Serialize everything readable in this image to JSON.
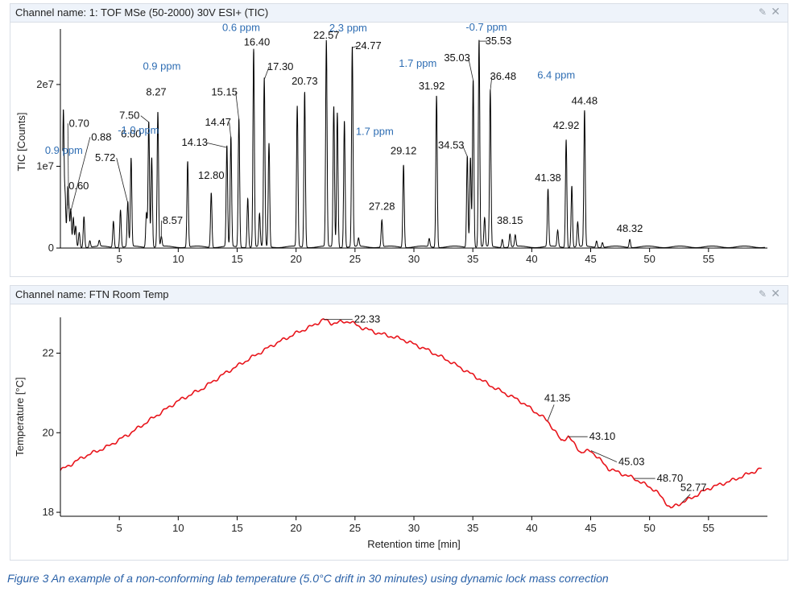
{
  "panels": {
    "top_title": "Channel name: 1: TOF MSe (50-2000) 30V ESI+ (TIC)",
    "bottom_title": "Channel name: FTN Room Temp",
    "pin_icon": "pin-icon",
    "close_icon": "close-icon",
    "pin_glyph": "✎",
    "close_glyph": "✕"
  },
  "caption": "Figure 3 An example of a non-conforming lab temperature (5.0°C drift in 30 minutes) using dynamic lock mass correction",
  "colors": {
    "tic_line": "#000000",
    "temp_line": "#e8141b",
    "ppm_text": "#2e6db3",
    "axis": "#000000"
  },
  "chart_data": [
    {
      "type": "line",
      "ylabel": "TIC [Counts]",
      "xlabel": "",
      "xlim": [
        0,
        60
      ],
      "ylim": [
        0,
        26000000
      ],
      "x_ticks": [
        5,
        10,
        15,
        20,
        25,
        30,
        35,
        40,
        45,
        50,
        55
      ],
      "y_ticks": [
        {
          "v": 0,
          "label": "0"
        },
        {
          "v": 10000000,
          "label": "1e7"
        },
        {
          "v": 20000000,
          "label": "2e7"
        }
      ],
      "grid": false,
      "peaks": [
        {
          "x": 0.25,
          "y": 16500000
        },
        {
          "x": 0.4,
          "y": 6000000
        },
        {
          "x": 0.6,
          "y": 5200000
        },
        {
          "x": 0.7,
          "y": 4800000
        },
        {
          "x": 0.88,
          "y": 4500000
        },
        {
          "x": 1.1,
          "y": 3500000
        },
        {
          "x": 1.3,
          "y": 2500000
        },
        {
          "x": 1.6,
          "y": 1800000
        },
        {
          "x": 2.0,
          "y": 3800000
        },
        {
          "x": 2.5,
          "y": 800000
        },
        {
          "x": 3.3,
          "y": 700000
        },
        {
          "x": 4.5,
          "y": 3200000
        },
        {
          "x": 5.1,
          "y": 4600000
        },
        {
          "x": 5.72,
          "y": 5500000
        },
        {
          "x": 6.0,
          "y": 10800000
        },
        {
          "x": 7.3,
          "y": 4200000
        },
        {
          "x": 7.5,
          "y": 15400000
        },
        {
          "x": 7.75,
          "y": 11000000
        },
        {
          "x": 8.27,
          "y": 16500000
        },
        {
          "x": 8.57,
          "y": 1200000
        },
        {
          "x": 10.8,
          "y": 10500000
        },
        {
          "x": 12.8,
          "y": 6700000
        },
        {
          "x": 14.13,
          "y": 12300000
        },
        {
          "x": 14.47,
          "y": 13400000
        },
        {
          "x": 15.15,
          "y": 15700000
        },
        {
          "x": 15.9,
          "y": 6000000
        },
        {
          "x": 16.4,
          "y": 24200000
        },
        {
          "x": 16.9,
          "y": 4000000
        },
        {
          "x": 17.3,
          "y": 20600000
        },
        {
          "x": 17.7,
          "y": 12700000
        },
        {
          "x": 20.1,
          "y": 17200000
        },
        {
          "x": 20.73,
          "y": 19000000
        },
        {
          "x": 22.57,
          "y": 25200000
        },
        {
          "x": 23.2,
          "y": 17200000
        },
        {
          "x": 23.5,
          "y": 16500000
        },
        {
          "x": 24.1,
          "y": 15500000
        },
        {
          "x": 24.77,
          "y": 24500000
        },
        {
          "x": 25.3,
          "y": 1000000
        },
        {
          "x": 27.28,
          "y": 3300000
        },
        {
          "x": 29.12,
          "y": 10100000
        },
        {
          "x": 31.3,
          "y": 1000000
        },
        {
          "x": 31.92,
          "y": 18600000
        },
        {
          "x": 34.53,
          "y": 11200000
        },
        {
          "x": 34.8,
          "y": 11000000
        },
        {
          "x": 35.03,
          "y": 20500000
        },
        {
          "x": 35.53,
          "y": 25300000
        },
        {
          "x": 36.0,
          "y": 3500000
        },
        {
          "x": 36.48,
          "y": 19200000
        },
        {
          "x": 37.5,
          "y": 1000000
        },
        {
          "x": 38.15,
          "y": 1600000
        },
        {
          "x": 38.6,
          "y": 1400000
        },
        {
          "x": 41.38,
          "y": 7000000
        },
        {
          "x": 42.2,
          "y": 2000000
        },
        {
          "x": 42.92,
          "y": 13200000
        },
        {
          "x": 43.4,
          "y": 7500000
        },
        {
          "x": 43.9,
          "y": 3000000
        },
        {
          "x": 44.48,
          "y": 16600000
        },
        {
          "x": 45.5,
          "y": 800000
        },
        {
          "x": 46.0,
          "y": 600000
        },
        {
          "x": 48.32,
          "y": 1000000
        }
      ],
      "labels": [
        {
          "text": "0.60",
          "x": 0.6
        },
        {
          "text": "0.70",
          "x": 0.7
        },
        {
          "text": "0.88",
          "x": 0.88
        },
        {
          "text": "5.72",
          "x": 5.72
        },
        {
          "text": "6.00",
          "x": 6.0
        },
        {
          "text": "7.50",
          "x": 7.5
        },
        {
          "text": "8.27",
          "x": 8.27
        },
        {
          "text": "8.57",
          "x": 8.57
        },
        {
          "text": "12.80",
          "x": 12.8
        },
        {
          "text": "14.13",
          "x": 14.13
        },
        {
          "text": "14.47",
          "x": 14.47
        },
        {
          "text": "15.15",
          "x": 15.15
        },
        {
          "text": "16.40",
          "x": 16.4
        },
        {
          "text": "17.30",
          "x": 17.3
        },
        {
          "text": "20.73",
          "x": 20.73
        },
        {
          "text": "22.57",
          "x": 22.57
        },
        {
          "text": "24.77",
          "x": 24.77
        },
        {
          "text": "27.28",
          "x": 27.28
        },
        {
          "text": "29.12",
          "x": 29.12
        },
        {
          "text": "31.92",
          "x": 31.92
        },
        {
          "text": "34.53",
          "x": 34.53
        },
        {
          "text": "35.03",
          "x": 35.03
        },
        {
          "text": "35.53",
          "x": 35.53
        },
        {
          "text": "36.48",
          "x": 36.48
        },
        {
          "text": "38.15",
          "x": 38.15
        },
        {
          "text": "41.38",
          "x": 41.38
        },
        {
          "text": "42.92",
          "x": 42.92
        },
        {
          "text": "44.48",
          "x": 44.48
        },
        {
          "text": "48.32",
          "x": 48.32
        }
      ],
      "ppm_annotations": [
        "0.9 ppm",
        "-1.0 ppm",
        "0.9 ppm",
        "0.6 ppm",
        "2.3 ppm",
        "1.7 ppm",
        "1.7 ppm",
        "-0.7 ppm",
        "6.4 ppm"
      ]
    },
    {
      "type": "line",
      "ylabel": "Temperature [°C]",
      "xlabel": "Retention time [min]",
      "xlim": [
        0,
        60
      ],
      "ylim": [
        17.9,
        22.9
      ],
      "x_ticks": [
        5,
        10,
        15,
        20,
        25,
        30,
        35,
        40,
        45,
        50,
        55
      ],
      "y_ticks": [
        {
          "v": 18,
          "label": "18"
        },
        {
          "v": 20,
          "label": "20"
        },
        {
          "v": 22,
          "label": "22"
        }
      ],
      "grid": false,
      "series": {
        "x": [
          0,
          2,
          4,
          6,
          8,
          10,
          12,
          14,
          16,
          18,
          20,
          21.5,
          22.33,
          23,
          24.5,
          25.5,
          27,
          29,
          31,
          33,
          35,
          37,
          39,
          41.35,
          42.5,
          43.1,
          44.2,
          45.03,
          46.5,
          48.7,
          50.5,
          51.8,
          52.77,
          53.5,
          55,
          57,
          59.5
        ],
        "y": [
          19.05,
          19.4,
          19.65,
          20.0,
          20.4,
          20.8,
          21.1,
          21.5,
          21.85,
          22.2,
          22.5,
          22.7,
          22.85,
          22.75,
          22.8,
          22.65,
          22.5,
          22.35,
          22.1,
          21.8,
          21.45,
          21.1,
          20.8,
          20.3,
          19.8,
          19.9,
          19.5,
          19.55,
          19.1,
          18.85,
          18.55,
          18.1,
          18.25,
          18.35,
          18.6,
          18.8,
          19.1
        ]
      },
      "labels": [
        {
          "text": "22.33",
          "x": 22.33
        },
        {
          "text": "41.35",
          "x": 41.35
        },
        {
          "text": "43.10",
          "x": 43.1
        },
        {
          "text": "45.03",
          "x": 45.03
        },
        {
          "text": "48.70",
          "x": 48.7
        },
        {
          "text": "52.77",
          "x": 52.77
        }
      ]
    }
  ]
}
